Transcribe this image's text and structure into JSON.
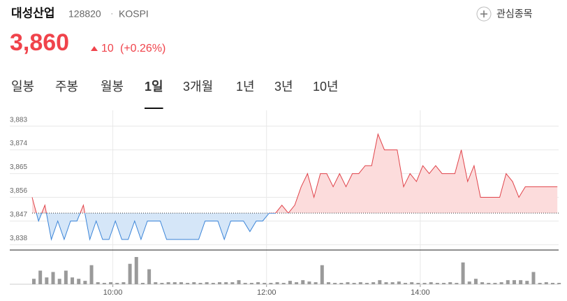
{
  "header": {
    "name": "대성산업",
    "code": "128820",
    "separator": "·",
    "market": "KOSPI",
    "watch_label": "관심종목"
  },
  "price": {
    "value": "3,860",
    "change": "10",
    "change_pct": "(+0.26%)"
  },
  "tabs": {
    "items": [
      "일봉",
      "주봉",
      "월봉",
      "1일",
      "3개월",
      "1년",
      "3년",
      "10년"
    ],
    "active": 3
  },
  "chart_data": {
    "type": "line",
    "x": [
      537,
      542,
      547,
      552,
      557,
      562,
      567,
      572,
      577,
      582,
      587,
      592,
      597,
      602,
      607,
      612,
      617,
      622,
      627,
      632,
      637,
      642,
      647,
      652,
      657,
      662,
      667,
      672,
      677,
      682,
      687,
      692,
      697,
      702,
      707,
      712,
      717,
      722,
      727,
      732,
      737,
      742,
      747,
      752,
      757,
      762,
      767,
      772,
      777,
      782,
      787,
      792,
      797,
      802,
      807,
      812,
      817,
      822,
      827,
      832,
      837,
      842,
      847,
      852,
      857,
      862,
      867,
      872,
      877,
      882,
      887,
      892,
      897,
      902,
      907,
      912,
      917,
      922,
      927,
      932,
      937,
      942,
      947
    ],
    "values": [
      3856,
      3847,
      3853,
      3840,
      3847,
      3840,
      3847,
      3847,
      3853,
      3840,
      3847,
      3840,
      3840,
      3847,
      3840,
      3840,
      3847,
      3840,
      3847,
      3847,
      3847,
      3840,
      3840,
      3840,
      3840,
      3840,
      3840,
      3847,
      3847,
      3847,
      3840,
      3847,
      3847,
      3847,
      3843,
      3847,
      3847,
      3850,
      3850,
      3853,
      3850,
      3853,
      3860,
      3865,
      3856,
      3865,
      3865,
      3860,
      3865,
      3860,
      3865,
      3865,
      3868,
      3868,
      3880,
      3874,
      3874,
      3874,
      3860,
      3865,
      3862,
      3868,
      3865,
      3868,
      3865,
      3865,
      3865,
      3874,
      3862,
      3868,
      3856,
      3856,
      3856,
      3856,
      3865,
      3862,
      3856,
      3860,
      3860,
      3860,
      3860,
      3860,
      3860
    ],
    "volume": [
      8,
      20,
      10,
      18,
      8,
      20,
      10,
      8,
      5,
      28,
      3,
      2,
      3,
      2,
      3,
      30,
      40,
      2,
      22,
      3,
      2,
      3,
      3,
      3,
      2,
      3,
      2,
      3,
      2,
      3,
      3,
      3,
      6,
      2,
      2,
      3,
      2,
      2,
      3,
      2,
      5,
      3,
      6,
      4,
      3,
      28,
      3,
      2,
      2,
      3,
      2,
      3,
      2,
      3,
      6,
      3,
      3,
      4,
      2,
      3,
      2,
      2,
      3,
      2,
      2,
      3,
      2,
      32,
      4,
      8,
      3,
      2,
      2,
      3,
      6,
      6,
      6,
      5,
      18,
      2,
      3,
      2,
      2
    ],
    "reference": 3850,
    "up_color": "#e0434a",
    "down_color": "#3a84d8",
    "up_fill": "#fcdcdc",
    "down_fill": "#d5e6f8",
    "volume_color": "#9a9a9a",
    "xlim": [
      537,
      948
    ],
    "xticks": [
      {
        "value": 600,
        "label": "10:00"
      },
      {
        "value": 720,
        "label": "12:00"
      },
      {
        "value": 840,
        "label": "14:00"
      }
    ],
    "ylim": [
      3836,
      3889
    ],
    "yticks": [
      {
        "value": 3838,
        "label": "3,838"
      },
      {
        "value": 3847,
        "label": "3,847"
      },
      {
        "value": 3856,
        "label": "3,856"
      },
      {
        "value": 3865,
        "label": "3,865"
      },
      {
        "value": 3874,
        "label": "3,874"
      },
      {
        "value": 3883,
        "label": "3,883"
      }
    ],
    "grid": true
  }
}
